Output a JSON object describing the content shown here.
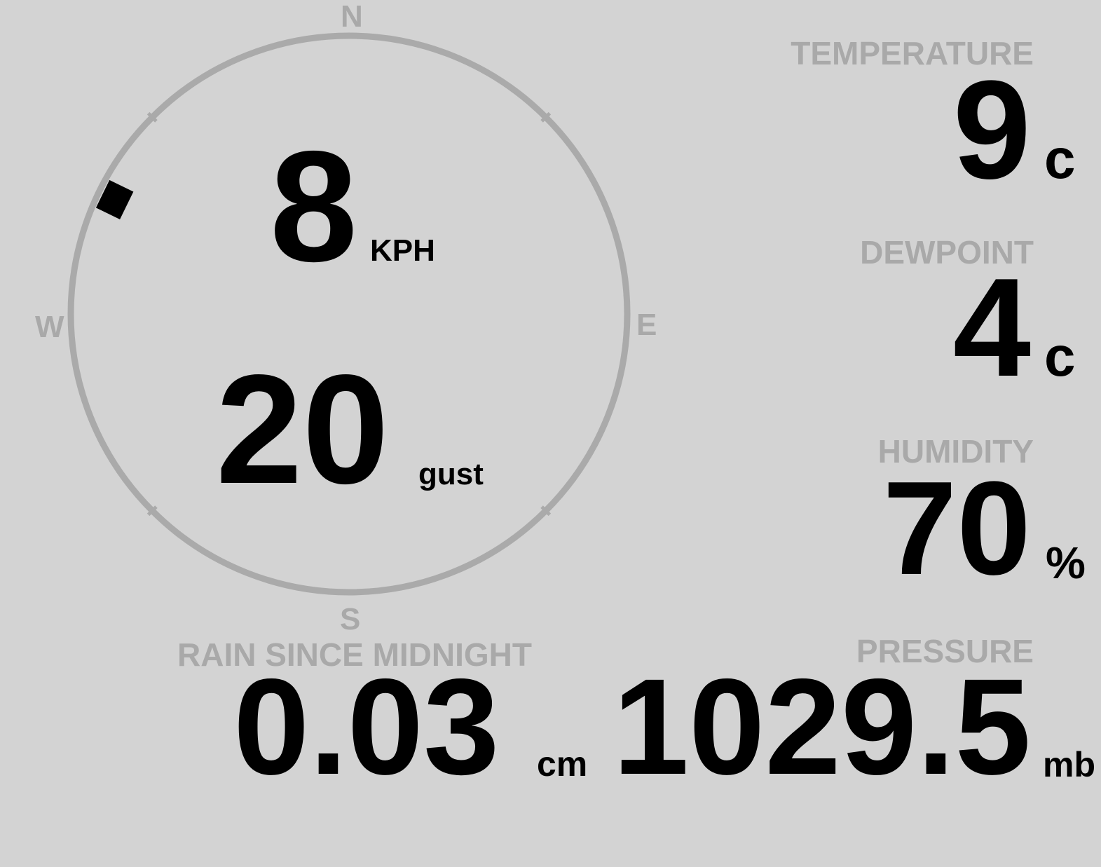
{
  "wind": {
    "speed": "8",
    "speed_unit": "KPH",
    "gust": "20",
    "gust_label": "gust",
    "direction_deg": 296,
    "compass": {
      "n": "N",
      "e": "E",
      "s": "S",
      "w": "W"
    }
  },
  "temperature": {
    "label": "TEMPERATURE",
    "value": "9",
    "unit": "c"
  },
  "dewpoint": {
    "label": "DEWPOINT",
    "value": "4",
    "unit": "c"
  },
  "humidity": {
    "label": "HUMIDITY",
    "value": "70",
    "unit": "%"
  },
  "pressure": {
    "label": "PRESSURE",
    "value": "1029.5",
    "unit": "mb"
  },
  "rain": {
    "label": "RAIN SINCE MIDNIGHT",
    "value": "0.03",
    "unit": "cm"
  },
  "colors": {
    "background": "#d3d3d3",
    "label": "#a9a9a9",
    "value": "#000000",
    "dial": "#aaaaaa"
  }
}
